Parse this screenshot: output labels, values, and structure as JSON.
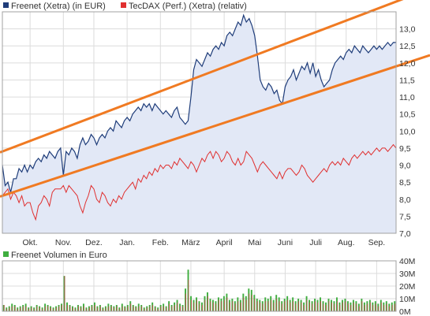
{
  "chart_data": [
    {
      "type": "line",
      "title": "",
      "legend": [
        {
          "label": "Freenet (Xetra) (in EUR)",
          "color": "#1f3d7a"
        },
        {
          "label": "TecDAX (Perf.) (Xetra) (relativ)",
          "color": "#e03030"
        }
      ],
      "legend_position": "top-left",
      "xlabel": "",
      "ylabel": "",
      "y_axis_side": "right",
      "grid": true,
      "ylim": [
        7.0,
        13.5
      ],
      "y_ticks": [
        "7,0",
        "7,5",
        "8,0",
        "8,5",
        "9,0",
        "9,5",
        "10,0",
        "10,5",
        "11,0",
        "11,5",
        "12,0",
        "12,5",
        "13,0"
      ],
      "y_tick_values": [
        7.0,
        7.5,
        8.0,
        8.5,
        9.0,
        9.5,
        10.0,
        10.5,
        11.0,
        11.5,
        12.0,
        12.5,
        13.0
      ],
      "x_ticks": [
        "Okt.",
        "Nov.",
        "Dez.",
        "Jan.",
        "Feb.",
        "März",
        "April",
        "Mai",
        "Juni",
        "Juli",
        "Aug.",
        "Sep."
      ],
      "x_tick_index": [
        10,
        22,
        33,
        45,
        57,
        68,
        80,
        91,
        102,
        113,
        124,
        135
      ],
      "x_count": 143,
      "series": [
        {
          "name": "Freenet (Xetra) (in EUR)",
          "color": "#1f3d7a",
          "fill": "#e2e8f6",
          "values": [
            9.0,
            8.4,
            8.5,
            8.2,
            8.6,
            8.6,
            8.9,
            8.8,
            9.0,
            8.8,
            9.0,
            8.9,
            9.1,
            9.2,
            9.1,
            9.3,
            9.2,
            9.4,
            9.3,
            9.2,
            9.4,
            9.5,
            8.7,
            9.4,
            9.3,
            9.5,
            9.4,
            9.2,
            9.6,
            9.8,
            9.6,
            9.7,
            9.9,
            9.8,
            9.6,
            9.8,
            9.9,
            9.8,
            10.0,
            10.1,
            10.0,
            10.3,
            10.2,
            10.1,
            10.3,
            10.4,
            10.3,
            10.5,
            10.6,
            10.7,
            10.6,
            10.8,
            10.7,
            10.8,
            10.6,
            10.8,
            10.7,
            10.6,
            10.5,
            10.6,
            10.5,
            10.4,
            10.6,
            10.7,
            10.4,
            10.3,
            10.2,
            10.3,
            11.0,
            11.8,
            12.1,
            12.0,
            11.9,
            12.1,
            12.3,
            12.2,
            12.4,
            12.5,
            12.4,
            12.6,
            12.5,
            12.8,
            12.9,
            12.8,
            13.0,
            13.2,
            13.1,
            13.4,
            13.2,
            13.3,
            13.1,
            12.8,
            12.2,
            11.5,
            11.3,
            11.2,
            11.4,
            11.3,
            11.1,
            11.2,
            10.9,
            10.8,
            11.3,
            11.5,
            11.6,
            11.8,
            11.5,
            11.7,
            11.9,
            11.8,
            12.0,
            11.7,
            12.0,
            11.6,
            11.8,
            11.5,
            11.3,
            11.4,
            11.5,
            11.8,
            12.0,
            12.1,
            12.2,
            12.1,
            12.3,
            12.4,
            12.3,
            12.5,
            12.4,
            12.3,
            12.5,
            12.4,
            12.3,
            12.4,
            12.5,
            12.4,
            12.5,
            12.4,
            12.5,
            12.6,
            12.5,
            12.6,
            12.6
          ]
        },
        {
          "name": "TecDAX (Perf.) (Xetra) (relativ)",
          "color": "#e03030",
          "values": [
            8.1,
            8.2,
            8.3,
            8.0,
            8.2,
            8.1,
            7.9,
            8.1,
            7.8,
            7.9,
            7.9,
            7.6,
            7.4,
            7.8,
            7.9,
            8.1,
            8.0,
            7.8,
            8.2,
            8.3,
            8.3,
            8.3,
            8.4,
            8.2,
            8.4,
            8.3,
            8.2,
            8.1,
            7.8,
            7.6,
            7.9,
            8.1,
            8.4,
            8.3,
            8.0,
            7.9,
            8.2,
            8.1,
            7.9,
            7.8,
            8.0,
            7.9,
            8.1,
            8.0,
            8.2,
            8.3,
            8.4,
            8.5,
            8.3,
            8.6,
            8.5,
            8.7,
            8.6,
            8.8,
            8.7,
            8.9,
            8.8,
            9.0,
            8.9,
            9.0,
            9.0,
            8.9,
            9.1,
            9.0,
            9.2,
            9.1,
            9.0,
            8.9,
            9.1,
            9.0,
            8.8,
            9.0,
            9.2,
            9.1,
            9.3,
            9.4,
            9.2,
            9.4,
            9.3,
            9.1,
            9.2,
            9.4,
            9.3,
            9.1,
            9.0,
            9.2,
            9.0,
            9.1,
            9.4,
            9.3,
            9.2,
            9.0,
            8.8,
            9.0,
            9.1,
            9.0,
            8.9,
            8.8,
            8.7,
            8.6,
            8.8,
            8.6,
            8.8,
            8.9,
            8.9,
            8.8,
            8.7,
            8.8,
            9.0,
            8.9,
            8.7,
            8.6,
            8.5,
            8.6,
            8.7,
            8.8,
            8.9,
            8.8,
            9.0,
            9.1,
            9.0,
            9.1,
            9.0,
            9.2,
            9.1,
            9.0,
            9.2,
            9.3,
            9.2,
            9.3,
            9.4,
            9.3,
            9.4,
            9.3,
            9.4,
            9.5,
            9.4,
            9.5,
            9.5,
            9.4,
            9.5,
            9.6,
            9.5
          ]
        }
      ],
      "trend_lines": {
        "color": "#f07a22",
        "lines": [
          {
            "name": "upper",
            "start": [
              0,
              9.4
            ],
            "end": [
              142,
              13.8
            ]
          },
          {
            "name": "lower",
            "start": [
              0,
              8.1
            ],
            "end": [
              142,
              11.9
            ]
          }
        ]
      }
    },
    {
      "type": "bar",
      "title": "",
      "legend": [
        {
          "label": "Freenet Volumen in Euro",
          "color": "#3fae3f"
        }
      ],
      "legend_position": "top-left",
      "y_axis_side": "right",
      "grid": true,
      "ylim": [
        0,
        40
      ],
      "y_ticks": [
        "0M",
        "10M",
        "20M",
        "30M",
        "40M"
      ],
      "y_tick_values": [
        0,
        10,
        20,
        30,
        40
      ],
      "x_count": 143,
      "series": [
        {
          "name": "Freenet Volumen in Euro",
          "color": "#3fae3f",
          "spike_color": "#c04a4a",
          "values": [
            5,
            3,
            4,
            6,
            5,
            3,
            4,
            5,
            6,
            3,
            4,
            3,
            5,
            4,
            3,
            6,
            5,
            4,
            3,
            4,
            5,
            6,
            28,
            7,
            5,
            4,
            3,
            5,
            4,
            6,
            3,
            4,
            5,
            7,
            4,
            5,
            3,
            4,
            6,
            5,
            4,
            5,
            3,
            6,
            4,
            5,
            8,
            5,
            4,
            6,
            5,
            3,
            4,
            5,
            7,
            4,
            3,
            5,
            6,
            4,
            8,
            5,
            7,
            9,
            6,
            5,
            18,
            33,
            12,
            9,
            11,
            8,
            7,
            12,
            15,
            10,
            9,
            8,
            11,
            10,
            12,
            14,
            9,
            10,
            8,
            11,
            9,
            14,
            12,
            18,
            17,
            13,
            10,
            9,
            8,
            11,
            10,
            12,
            9,
            13,
            11,
            8,
            10,
            12,
            9,
            11,
            8,
            10,
            9,
            7,
            12,
            9,
            8,
            10,
            9,
            11,
            8,
            7,
            10,
            9,
            8,
            11,
            7,
            9,
            10,
            8,
            7,
            9,
            8,
            6,
            10,
            7,
            8,
            9,
            7,
            8,
            6,
            9,
            7,
            8,
            6,
            7,
            8
          ],
          "spike_values": [
            5,
            2,
            3,
            4,
            4,
            2,
            3,
            4,
            4,
            2,
            3,
            2,
            4,
            3,
            2,
            4,
            4,
            3,
            2,
            3,
            4,
            5,
            28,
            5,
            4,
            3,
            2,
            4,
            3,
            4,
            2,
            3,
            4,
            5,
            3,
            4,
            2,
            3,
            4,
            4,
            3,
            4,
            2,
            4,
            3,
            4,
            6,
            4,
            3,
            4,
            4,
            2,
            3,
            4,
            5,
            3,
            2,
            4,
            4,
            3,
            6,
            4,
            5,
            7,
            4,
            4,
            14,
            25,
            9,
            7,
            9,
            6,
            5,
            9,
            12,
            8,
            7,
            6,
            9,
            8,
            9,
            11,
            7,
            8,
            6,
            8,
            7,
            11,
            9,
            14,
            13,
            10,
            8,
            7,
            6,
            8,
            8,
            9,
            7,
            10,
            8,
            6,
            8,
            9,
            7,
            8,
            6,
            8,
            7,
            5,
            9,
            7,
            6,
            8,
            7,
            8,
            6,
            5,
            8,
            7,
            6,
            8,
            5,
            7,
            8,
            6,
            5,
            7,
            6,
            4,
            8,
            5,
            6,
            7,
            5,
            6,
            4,
            7,
            5,
            6,
            4,
            5,
            6
          ]
        }
      ]
    }
  ]
}
